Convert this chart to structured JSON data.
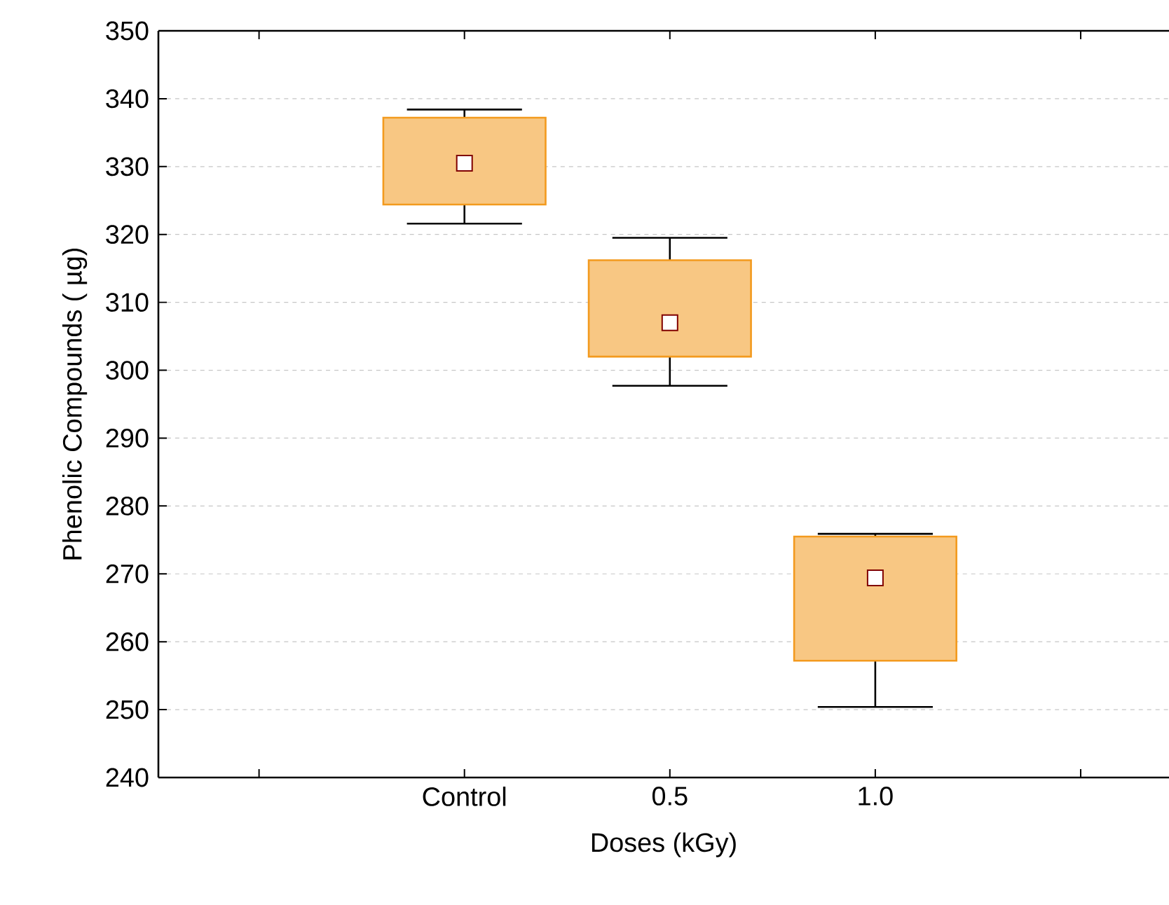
{
  "chart_data": {
    "type": "box",
    "xlabel": "Doses (kGy)",
    "ylabel": "Phenolic Compounds ( µg)",
    "categories": [
      "Control",
      "0.5",
      "1.0"
    ],
    "color": "#f39a1e",
    "marker": "square",
    "boxes": [
      {
        "low": 321.6,
        "q1": 324.4,
        "median": 330.5,
        "q3": 337.2,
        "high": 338.4
      },
      {
        "low": 297.7,
        "q1": 302.0,
        "median": 307.0,
        "q3": 316.2,
        "high": 319.5
      },
      {
        "low": 250.4,
        "q1": 257.2,
        "median": 269.4,
        "q3": 275.5,
        "high": 275.9
      }
    ],
    "ylim": [
      240,
      350
    ],
    "yticks": [
      240,
      250,
      260,
      270,
      280,
      290,
      300,
      310,
      320,
      330,
      340,
      350
    ],
    "grid": "y"
  }
}
